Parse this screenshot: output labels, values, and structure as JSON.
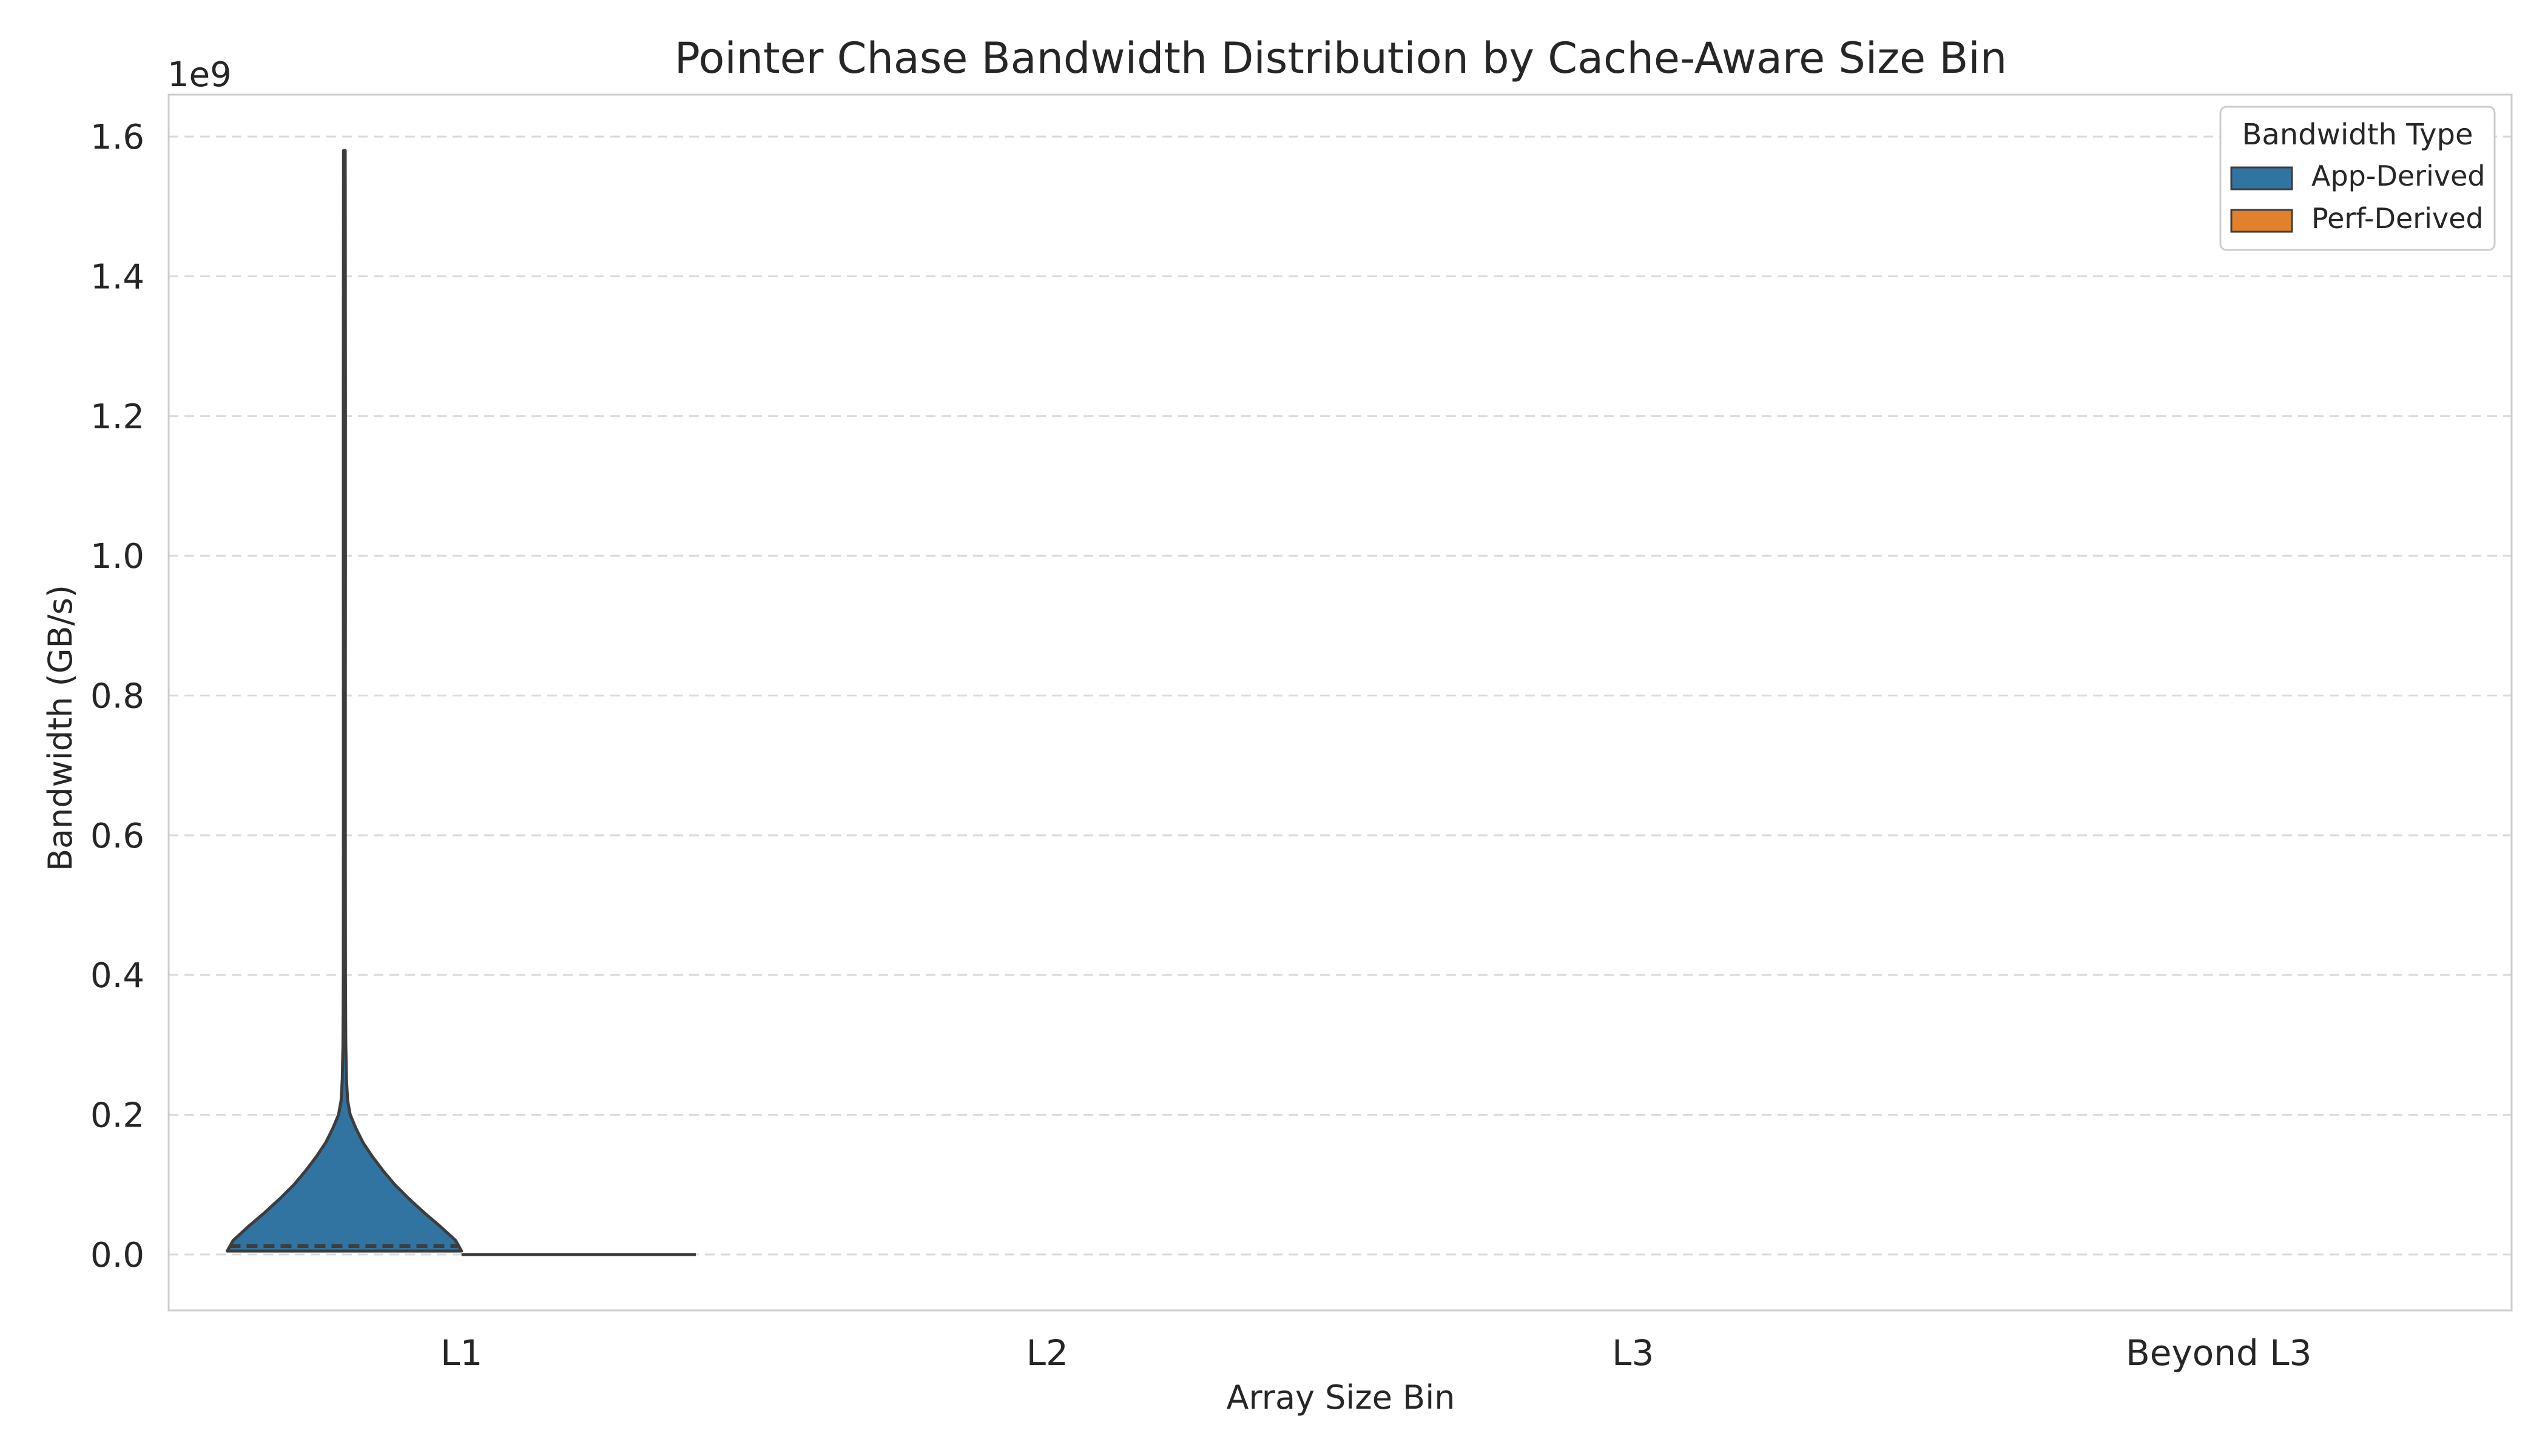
{
  "chart_data": {
    "type": "violin",
    "title": "Pointer Chase Bandwidth Distribution by Cache-Aware Size Bin",
    "xlabel": "Array Size Bin",
    "ylabel": "Bandwidth (GB/s)",
    "y_scale_label": "1e9",
    "categories": [
      "L1",
      "L2",
      "L3",
      "Beyond L3"
    ],
    "y_ticks": [
      0.0,
      0.2,
      0.4,
      0.6,
      0.8,
      1.0,
      1.2,
      1.4,
      1.6
    ],
    "y_tick_labels": [
      "0.0",
      "0.2",
      "0.4",
      "0.6",
      "0.8",
      "1.0",
      "1.2",
      "1.4",
      "1.6"
    ],
    "ylim": [
      -0.08,
      1.66
    ],
    "grid": true,
    "legend": {
      "title": "Bandwidth Type",
      "placement": "top-right",
      "entries": [
        {
          "name": "App-Derived",
          "color": "#3274a1"
        },
        {
          "name": "Perf-Derived",
          "color": "#e1812c"
        }
      ]
    },
    "series": [
      {
        "name": "App-Derived",
        "color": "#3274a1",
        "violins": [
          {
            "category": "L1",
            "min": 0.005,
            "max": 1.58,
            "median": 0.012,
            "density": [
              [
                0.005,
                1.0
              ],
              [
                0.02,
                0.95
              ],
              [
                0.04,
                0.82
              ],
              [
                0.06,
                0.68
              ],
              [
                0.08,
                0.55
              ],
              [
                0.1,
                0.43
              ],
              [
                0.12,
                0.33
              ],
              [
                0.14,
                0.24
              ],
              [
                0.16,
                0.16
              ],
              [
                0.18,
                0.1
              ],
              [
                0.2,
                0.05
              ],
              [
                0.22,
                0.028
              ],
              [
                0.25,
                0.018
              ],
              [
                0.3,
                0.012
              ],
              [
                0.4,
                0.009
              ],
              [
                0.6,
                0.008
              ],
              [
                0.8,
                0.008
              ],
              [
                1.0,
                0.009
              ],
              [
                1.2,
                0.009
              ],
              [
                1.4,
                0.008
              ],
              [
                1.58,
                0.007
              ]
            ]
          }
        ]
      },
      {
        "name": "Perf-Derived",
        "color": "#e1812c",
        "violins": [
          {
            "category": "L1",
            "min": 0.0,
            "max": 0.0,
            "median": 0.0,
            "density": []
          }
        ]
      }
    ]
  }
}
